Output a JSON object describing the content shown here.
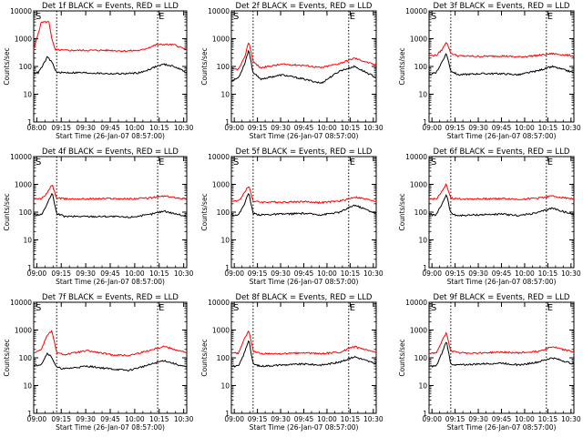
{
  "chart_data": [
    {
      "type": "line",
      "title": "Det 1f BLACK = Events, RED = LLD",
      "ylabel": "Counts/sec",
      "xlabel": "Start Time (26-Jan-07 08:57:00)",
      "xticks": [
        "08:00",
        "09:15",
        "09:30",
        "09:45",
        "10:00",
        "10:15",
        "10:30"
      ],
      "yticks": [
        "1",
        "10",
        "100",
        "1000",
        "10000"
      ],
      "markers": [
        "S",
        "E"
      ],
      "ylim": [
        1,
        10000
      ],
      "yscale": "log",
      "series": [
        {
          "color": "#ff0000",
          "x": [
            0,
            0.05,
            0.1,
            0.12,
            0.14,
            0.2,
            0.35,
            0.5,
            0.6,
            0.7,
            0.8,
            0.85,
            0.92,
            1
          ],
          "y": [
            400,
            4000,
            4000,
            900,
            400,
            380,
            380,
            380,
            360,
            380,
            600,
            620,
            600,
            400
          ]
        },
        {
          "color": "#000000",
          "x": [
            0,
            0.03,
            0.06,
            0.09,
            0.12,
            0.15,
            0.3,
            0.5,
            0.6,
            0.7,
            0.8,
            0.85,
            0.92,
            1
          ],
          "y": [
            60,
            60,
            110,
            220,
            140,
            60,
            60,
            55,
            55,
            60,
            100,
            120,
            100,
            60
          ]
        }
      ]
    },
    {
      "type": "line",
      "title": "Det 2f BLACK = Events, RED = LLD",
      "ylabel": "Counts/sec",
      "xlabel": "Start Time (26-Jan-07 08:57:00)",
      "xticks": [
        "09:00",
        "09:15",
        "09:30",
        "09:45",
        "10:00",
        "10:15",
        "10:30"
      ],
      "yticks": [
        "1",
        "10",
        "100",
        "1000",
        "10000"
      ],
      "markers": [
        "S",
        "E"
      ],
      "ylim": [
        1,
        10000
      ],
      "yscale": "log",
      "series": [
        {
          "color": "#ff0000",
          "x": [
            0,
            0.05,
            0.09,
            0.12,
            0.15,
            0.2,
            0.35,
            0.5,
            0.62,
            0.75,
            0.85,
            1
          ],
          "y": [
            80,
            80,
            200,
            800,
            150,
            90,
            120,
            110,
            90,
            130,
            200,
            110
          ]
        },
        {
          "color": "#000000",
          "x": [
            0,
            0.05,
            0.09,
            0.12,
            0.15,
            0.2,
            0.35,
            0.5,
            0.62,
            0.75,
            0.85,
            1
          ],
          "y": [
            30,
            40,
            120,
            400,
            60,
            35,
            50,
            35,
            25,
            70,
            100,
            40
          ]
        }
      ]
    },
    {
      "type": "line",
      "title": "Det 3f BLACK = Events, RED = LLD",
      "ylabel": "Counts/sec",
      "xlabel": "Start Time (26-Jan-07 08:57:00)",
      "xticks": [
        "09:00",
        "09:15",
        "09:30",
        "09:45",
        "10:00",
        "10:15",
        "10:30"
      ],
      "yticks": [
        "1",
        "10",
        "100",
        "1000",
        "10000"
      ],
      "markers": [
        "S",
        "E"
      ],
      "ylim": [
        1,
        10000
      ],
      "yscale": "log",
      "series": [
        {
          "color": "#ff0000",
          "x": [
            0,
            0.05,
            0.09,
            0.12,
            0.15,
            0.2,
            0.35,
            0.5,
            0.62,
            0.75,
            0.85,
            1
          ],
          "y": [
            250,
            250,
            400,
            800,
            300,
            240,
            230,
            240,
            220,
            250,
            290,
            240
          ]
        },
        {
          "color": "#000000",
          "x": [
            0,
            0.05,
            0.09,
            0.12,
            0.15,
            0.2,
            0.35,
            0.5,
            0.62,
            0.75,
            0.85,
            1
          ],
          "y": [
            50,
            60,
            150,
            300,
            70,
            50,
            55,
            55,
            50,
            70,
            100,
            60
          ]
        }
      ]
    },
    {
      "type": "line",
      "title": "Det 4f BLACK = Events, RED = LLD",
      "ylabel": "Counts/sec",
      "xlabel": "Start Time (26-Jan-07 08:57:00)",
      "xticks": [
        "09:00",
        "09:15",
        "09:30",
        "09:45",
        "10:00",
        "10:15",
        "10:30"
      ],
      "yticks": [
        "1",
        "10",
        "100",
        "1000",
        "10000"
      ],
      "markers": [
        "S",
        "E"
      ],
      "ylim": [
        1,
        10000
      ],
      "yscale": "log",
      "series": [
        {
          "color": "#ff0000",
          "x": [
            0,
            0.05,
            0.09,
            0.12,
            0.15,
            0.2,
            0.35,
            0.5,
            0.62,
            0.75,
            0.85,
            1
          ],
          "y": [
            300,
            300,
            500,
            1000,
            320,
            300,
            300,
            310,
            300,
            320,
            380,
            300
          ]
        },
        {
          "color": "#000000",
          "x": [
            0,
            0.05,
            0.09,
            0.12,
            0.15,
            0.2,
            0.35,
            0.5,
            0.62,
            0.75,
            0.85,
            1
          ],
          "y": [
            80,
            80,
            200,
            500,
            90,
            70,
            70,
            70,
            65,
            80,
            110,
            70
          ]
        }
      ]
    },
    {
      "type": "line",
      "title": "Det 5f BLACK = Events, RED = LLD",
      "ylabel": "Counts/sec",
      "xlabel": "Start Time (26-Jan-07 08:57:00)",
      "xticks": [
        "09:00",
        "09:15",
        "09:30",
        "09:45",
        "10:00",
        "10:15",
        "10:30"
      ],
      "yticks": [
        "1",
        "10",
        "100",
        "1000",
        "10000"
      ],
      "markers": [
        "S",
        "E"
      ],
      "ylim": [
        1,
        10000
      ],
      "yscale": "log",
      "series": [
        {
          "color": "#ff0000",
          "x": [
            0,
            0.05,
            0.09,
            0.12,
            0.15,
            0.2,
            0.35,
            0.5,
            0.62,
            0.75,
            0.85,
            1
          ],
          "y": [
            250,
            250,
            500,
            900,
            250,
            230,
            230,
            240,
            220,
            250,
            350,
            250
          ]
        },
        {
          "color": "#000000",
          "x": [
            0,
            0.05,
            0.09,
            0.12,
            0.15,
            0.2,
            0.35,
            0.5,
            0.62,
            0.75,
            0.85,
            1
          ],
          "y": [
            80,
            80,
            200,
            500,
            90,
            80,
            85,
            90,
            80,
            100,
            180,
            90
          ]
        }
      ]
    },
    {
      "type": "line",
      "title": "Det 6f BLACK = Events, RED = LLD",
      "ylabel": "Counts/sec",
      "xlabel": "Start Time (26-Jan-07 08:57:00)",
      "xticks": [
        "09:00",
        "09:15",
        "09:30",
        "09:45",
        "10:00",
        "10:15",
        "10:30"
      ],
      "yticks": [
        "1",
        "10",
        "100",
        "1000",
        "10000"
      ],
      "markers": [
        "S",
        "E"
      ],
      "ylim": [
        1,
        10000
      ],
      "yscale": "log",
      "series": [
        {
          "color": "#ff0000",
          "x": [
            0,
            0.05,
            0.09,
            0.12,
            0.15,
            0.2,
            0.35,
            0.5,
            0.62,
            0.75,
            0.85,
            1
          ],
          "y": [
            300,
            300,
            550,
            1000,
            320,
            300,
            300,
            310,
            290,
            320,
            380,
            300
          ]
        },
        {
          "color": "#000000",
          "x": [
            0,
            0.05,
            0.09,
            0.12,
            0.15,
            0.2,
            0.35,
            0.5,
            0.62,
            0.75,
            0.85,
            1
          ],
          "y": [
            80,
            80,
            200,
            450,
            90,
            75,
            80,
            85,
            75,
            95,
            140,
            80
          ]
        }
      ]
    },
    {
      "type": "line",
      "title": "Det 7f BLACK = Events, RED = LLD",
      "ylabel": "Counts/sec",
      "xlabel": "Start Time (26-Jan-07 08:57:00)",
      "xticks": [
        "09:00",
        "09:15",
        "09:30",
        "09:45",
        "10:00",
        "10:15",
        "10:30"
      ],
      "yticks": [
        "1",
        "10",
        "100",
        "1000",
        "10000"
      ],
      "markers": [
        "S",
        "E"
      ],
      "ylim": [
        1,
        10000
      ],
      "yscale": "log",
      "series": [
        {
          "color": "#ff0000",
          "x": [
            0,
            0.05,
            0.09,
            0.12,
            0.15,
            0.2,
            0.35,
            0.5,
            0.62,
            0.75,
            0.85,
            1
          ],
          "y": [
            150,
            200,
            700,
            900,
            150,
            130,
            180,
            130,
            120,
            180,
            260,
            150
          ]
        },
        {
          "color": "#000000",
          "x": [
            0,
            0.05,
            0.09,
            0.12,
            0.15,
            0.2,
            0.35,
            0.5,
            0.62,
            0.75,
            0.85,
            1
          ],
          "y": [
            50,
            60,
            150,
            100,
            45,
            40,
            50,
            40,
            35,
            55,
            80,
            45
          ]
        }
      ]
    },
    {
      "type": "line",
      "title": "Det 8f BLACK = Events, RED = LLD",
      "ylabel": "Counts/sec",
      "xlabel": "Start Time (26-Jan-07 08:57:00)",
      "xticks": [
        "09:00",
        "09:15",
        "09:30",
        "09:45",
        "10:00",
        "10:15",
        "10:30"
      ],
      "yticks": [
        "1",
        "10",
        "100",
        "1000",
        "10000"
      ],
      "markers": [
        "S",
        "E"
      ],
      "ylim": [
        1,
        10000
      ],
      "yscale": "log",
      "series": [
        {
          "color": "#ff0000",
          "x": [
            0,
            0.05,
            0.09,
            0.12,
            0.15,
            0.2,
            0.35,
            0.5,
            0.62,
            0.75,
            0.85,
            1
          ],
          "y": [
            150,
            150,
            500,
            900,
            180,
            140,
            140,
            150,
            140,
            160,
            250,
            150
          ]
        },
        {
          "color": "#000000",
          "x": [
            0,
            0.05,
            0.09,
            0.12,
            0.15,
            0.2,
            0.35,
            0.5,
            0.62,
            0.75,
            0.85,
            1
          ],
          "y": [
            50,
            50,
            150,
            450,
            60,
            50,
            55,
            60,
            55,
            70,
            110,
            60
          ]
        }
      ]
    },
    {
      "type": "line",
      "title": "Det 9f BLACK = Events, RED = LLD",
      "ylabel": "Counts/sec",
      "xlabel": "Start Time (26-Jan-07 08:57:00)",
      "xticks": [
        "09:00",
        "09:15",
        "09:30",
        "09:45",
        "10:00",
        "10:15",
        "10:30"
      ],
      "yticks": [
        "1",
        "10",
        "100",
        "1000",
        "10000"
      ],
      "markers": [
        "S",
        "E"
      ],
      "ylim": [
        1,
        10000
      ],
      "yscale": "log",
      "series": [
        {
          "color": "#ff0000",
          "x": [
            0,
            0.05,
            0.09,
            0.12,
            0.15,
            0.2,
            0.35,
            0.5,
            0.62,
            0.75,
            0.85,
            1
          ],
          "y": [
            150,
            150,
            400,
            800,
            180,
            150,
            150,
            160,
            150,
            170,
            250,
            160
          ]
        },
        {
          "color": "#000000",
          "x": [
            0,
            0.05,
            0.09,
            0.12,
            0.15,
            0.2,
            0.35,
            0.5,
            0.62,
            0.75,
            0.85,
            1
          ],
          "y": [
            50,
            50,
            150,
            400,
            60,
            55,
            60,
            65,
            55,
            70,
            100,
            60
          ]
        }
      ]
    }
  ]
}
